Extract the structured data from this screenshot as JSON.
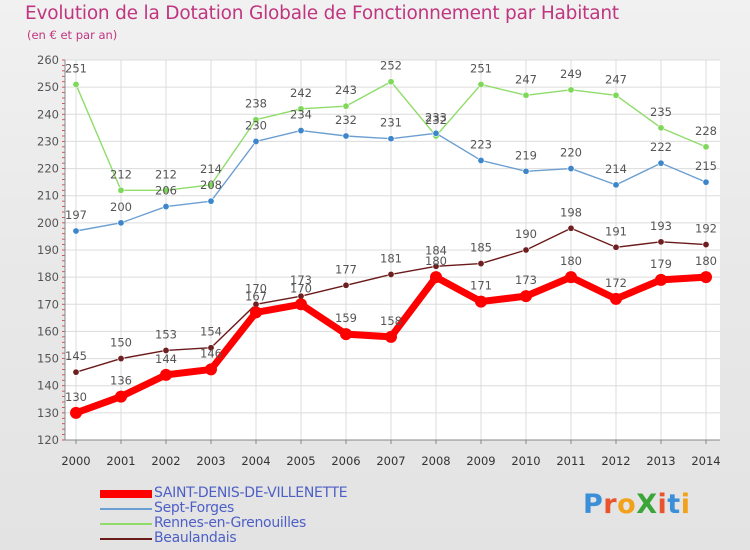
{
  "header": {
    "title": "Evolution de la Dotation Globale de Fonctionnement par Habitant",
    "subtitle": "(en € et par an)"
  },
  "logo": {
    "text": "ProXiti",
    "letters": [
      "P",
      "r",
      "o",
      "X",
      "i",
      "t",
      "i"
    ],
    "colors": [
      "#3a8fd8",
      "#e8542b",
      "#f2a21a",
      "#3aa63a",
      "#e8542b",
      "#3a8fd8",
      "#f2a21a"
    ]
  },
  "chart_data": {
    "type": "line",
    "title": "Evolution de la Dotation Globale de Fonctionnement par Habitant",
    "subtitle": "(en € et par an)",
    "x": [
      "2000",
      "2001",
      "2002",
      "2003",
      "2004",
      "2005",
      "2006",
      "2007",
      "2008",
      "2009",
      "2010",
      "2011",
      "2012",
      "2013",
      "2014"
    ],
    "ylim": [
      120,
      260
    ],
    "yticks": [
      120,
      130,
      140,
      150,
      160,
      170,
      180,
      190,
      200,
      210,
      220,
      230,
      240,
      250,
      260
    ],
    "grid": true,
    "legend_position": "bottom-left",
    "series": [
      {
        "name": "SAINT-DENIS-DE-VILLENETTE",
        "color": "#ff0000",
        "emphasis": "thick",
        "values": [
          130,
          136,
          144,
          146,
          167,
          170,
          159,
          158,
          180,
          171,
          173,
          180,
          172,
          179,
          180
        ],
        "labels": [
          "130",
          "136",
          "144",
          "146",
          "167",
          "170",
          "159",
          "158",
          "180",
          "171",
          "173",
          "180",
          "172",
          "179",
          "180"
        ]
      },
      {
        "name": "Sept-Forges",
        "color": "#6b9fd1",
        "marker": "#3d86c9",
        "values": [
          197,
          200,
          206,
          208,
          230,
          234,
          232,
          231,
          233,
          223,
          219,
          220,
          214,
          222,
          215
        ],
        "labels": [
          "197",
          "200",
          "206",
          "208",
          "230",
          "234",
          "232",
          "231",
          "233",
          "223",
          "219",
          "220",
          "214",
          "222",
          "215"
        ]
      },
      {
        "name": "Rennes-en-Grenouilles",
        "color": "#8fdc6a",
        "marker": "#7ed85a",
        "values": [
          251,
          212,
          212,
          214,
          238,
          242,
          243,
          252,
          232,
          251,
          247,
          249,
          247,
          235,
          228
        ],
        "labels": [
          "251",
          "212",
          "212",
          "214",
          "238",
          "242",
          "243",
          "252",
          "232",
          "251",
          "247",
          "249",
          "247",
          "235",
          "228"
        ]
      },
      {
        "name": "Beaulandais",
        "color": "#6b1a1a",
        "marker": "#6e1f22",
        "values": [
          145,
          150,
          153,
          154,
          170,
          173,
          177,
          181,
          184,
          185,
          190,
          198,
          191,
          193,
          192
        ],
        "labels": [
          "145",
          "150",
          "153",
          "154",
          "170",
          "173",
          "177",
          "181",
          "184",
          "185",
          "190",
          "198",
          "191",
          "193",
          "192"
        ]
      }
    ]
  }
}
